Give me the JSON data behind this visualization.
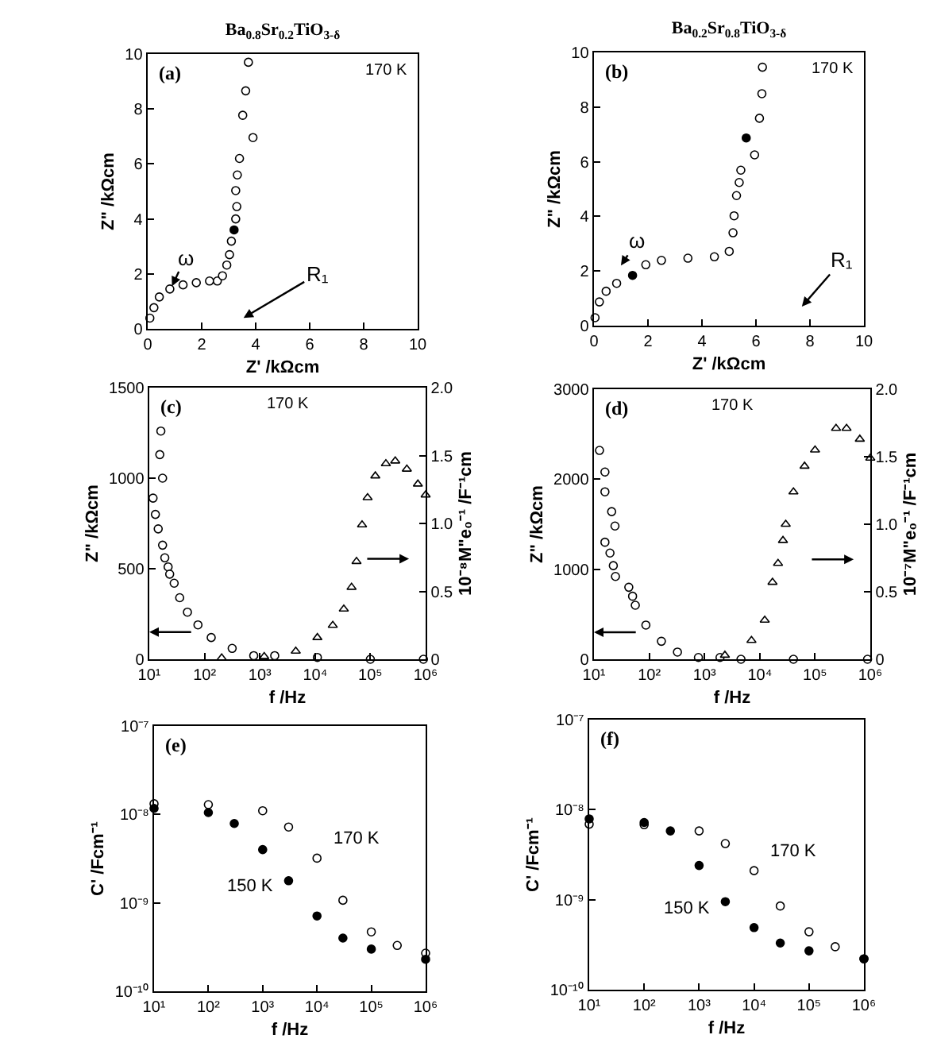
{
  "chart_data": [
    {
      "type": "scatter",
      "title": "Ba$_{0.8}$Sr$_{0.2}$TiO$_{3-δ}$",
      "xlabel": "Z' /kΩcm",
      "ylabel": "Z\" /kΩcm",
      "xlim": [
        0,
        10
      ],
      "ylim": [
        0,
        10
      ],
      "xticks": [
        0,
        2,
        4,
        6,
        8,
        10
      ],
      "yticks": [
        0,
        2,
        4,
        6,
        8,
        10
      ],
      "marker": "circle",
      "series": [
        {
          "color": "#ffffff",
          "x": [
            0.08,
            0.23,
            0.43,
            0.82,
            1.31,
            1.8,
            2.29,
            2.58,
            2.77,
            2.93,
            3.03,
            3.1,
            3.26,
            3.3,
            3.26,
            3.32,
            3.4,
            3.9,
            3.52,
            3.63,
            3.73
          ],
          "values": [
            0.39,
            0.77,
            1.16,
            1.45,
            1.6,
            1.68,
            1.74,
            1.74,
            1.93,
            2.32,
            2.7,
            3.19,
            4.0,
            4.45,
            5.03,
            5.6,
            6.2,
            6.96,
            7.77,
            8.66,
            9.7
          ]
        },
        {
          "color": "#000000",
          "x": [
            3.2
          ],
          "values": [
            3.6
          ]
        }
      ],
      "annotations": [
        "(a)",
        "170 K",
        "ω",
        "R₁"
      ]
    },
    {
      "type": "scatter",
      "title": "Ba$_{0.2}$Sr$_{0.8}$TiO$_{3-δ}$",
      "xlabel": "Z' /kΩcm",
      "ylabel": "Z\" /kΩcm",
      "xlim": [
        0,
        10
      ],
      "ylim": [
        0,
        10
      ],
      "xticks": [
        0,
        2,
        4,
        6,
        8,
        10
      ],
      "yticks": [
        0,
        2,
        4,
        6,
        8,
        10
      ],
      "marker": "circle",
      "series": [
        {
          "color": "#ffffff",
          "x": [
            0.04,
            0.2,
            0.45,
            0.84,
            1.92,
            2.5,
            3.48,
            4.46,
            5.01,
            5.15,
            5.19,
            5.28,
            5.38,
            5.44,
            5.95,
            6.13,
            6.22,
            6.24
          ],
          "values": [
            0.29,
            0.87,
            1.26,
            1.55,
            2.23,
            2.39,
            2.47,
            2.52,
            2.72,
            3.4,
            4.02,
            4.76,
            5.24,
            5.69,
            6.25,
            7.59,
            8.49,
            9.46
          ]
        },
        {
          "color": "#000000",
          "x": [
            1.43,
            5.64
          ],
          "values": [
            1.84,
            6.87
          ]
        }
      ],
      "annotations": [
        "(b)",
        "170 K",
        "ω",
        "R₁"
      ]
    },
    {
      "type": "scatter",
      "xlabel": "f /Hz",
      "ylabel": "Z\" /kΩcm",
      "y2label": "10⁻⁸M\"e₀⁻¹ /F⁻¹cm",
      "log": "x",
      "xlim": [
        10,
        1000000
      ],
      "ylim": [
        0,
        1500
      ],
      "y2lim": [
        0,
        2.0
      ],
      "xticks": [
        {
          "value": 10,
          "label": "10¹"
        },
        {
          "value": 100,
          "label": "10²"
        },
        {
          "value": 1000,
          "label": "10³"
        },
        {
          "value": 10000,
          "label": "10⁴"
        },
        {
          "value": 100000,
          "label": "10⁵"
        },
        {
          "value": 1000000,
          "label": "10⁶"
        }
      ],
      "yticks": [
        0,
        500,
        1000,
        1500
      ],
      "y2ticks": [
        0,
        {
          "value": 0.5,
          "label": "0.5"
        },
        {
          "value": 1,
          "label": "1.0"
        },
        {
          "value": 1.5,
          "label": "1.5"
        },
        {
          "value": 2,
          "label": "2.0"
        }
      ],
      "series": [
        {
          "color": "#ffffff",
          "marker": "circle",
          "x": [
            16.2,
            15.5,
            17.4,
            11.7,
            12.9,
            14.5,
            17.4,
            19.1,
            21.9,
            23.4,
            28.2,
            35.5,
            49,
            76,
            132,
            316,
            776,
            1860,
            11000,
            100000,
            912000
          ],
          "values": [
            1260,
            1130,
            1000,
            890,
            800,
            720,
            630,
            560,
            510,
            470,
            420,
            340,
            260,
            190,
            120,
            60,
            20,
            20,
            10,
            0,
            0
          ]
        },
        {
          "color": "#ffffff",
          "marker": "triangle",
          "axis": "y2",
          "x": [
            204,
            1200,
            4470,
            11000,
            20900,
            33100,
            45700,
            56200,
            70800,
            89100,
            123000,
            191000,
            282000,
            457000,
            724000,
            1000000
          ],
          "values": [
            0.01,
            0.02,
            0.06,
            0.16,
            0.25,
            0.37,
            0.53,
            0.72,
            0.99,
            1.19,
            1.35,
            1.44,
            1.46,
            1.4,
            1.29,
            1.21
          ]
        }
      ],
      "annotations": [
        "(c)",
        "170 K"
      ]
    },
    {
      "type": "scatter",
      "xlabel": "f /Hz",
      "ylabel": "Z\" /kΩcm",
      "y2label": "10⁻⁷M\"e₀⁻¹ /F⁻¹cm",
      "log": "x",
      "xlim": [
        10,
        1000000
      ],
      "ylim": [
        0,
        3000
      ],
      "y2lim": [
        0,
        2.0
      ],
      "xticks": [
        {
          "value": 10,
          "label": "10¹"
        },
        {
          "value": 100,
          "label": "10²"
        },
        {
          "value": 1000,
          "label": "10³"
        },
        {
          "value": 10000,
          "label": "10⁴"
        },
        {
          "value": 100000,
          "label": "10⁵"
        },
        {
          "value": 1000000,
          "label": "10⁶"
        }
      ],
      "yticks": [
        0,
        1000,
        2000,
        3000
      ],
      "y2ticks": [
        0,
        {
          "value": 0.5,
          "label": "0.5"
        },
        {
          "value": 1,
          "label": "1.0"
        },
        {
          "value": 1.5,
          "label": "1.5"
        },
        {
          "value": 2,
          "label": "2.0"
        }
      ],
      "series": [
        {
          "color": "#ffffff",
          "marker": "circle",
          "x": [
            12.6,
            15.8,
            15.8,
            20.9,
            24,
            15.8,
            19.5,
            22.4,
            24.5,
            42.7,
            50,
            56,
            87,
            166,
            324,
            776,
            1910,
            4570,
            40700,
            891000
          ],
          "values": [
            2320,
            2080,
            1860,
            1640,
            1480,
            1300,
            1180,
            1040,
            920,
            800,
            700,
            600,
            380,
            200,
            80,
            20,
            20,
            0,
            0,
            0
          ]
        },
        {
          "color": "#ffffff",
          "marker": "triangle",
          "axis": "y2",
          "x": [
            2340,
            7080,
            12300,
            17000,
            21400,
            26300,
            29500,
            40700,
            64600,
            100000,
            240000,
            372000,
            646000,
            1000000
          ],
          "values": [
            0.03,
            0.14,
            0.29,
            0.57,
            0.71,
            0.88,
            1.0,
            1.24,
            1.43,
            1.55,
            1.71,
            1.71,
            1.63,
            1.49
          ]
        }
      ],
      "annotations": [
        "(d)",
        "170 K"
      ]
    },
    {
      "type": "scatter",
      "xlabel": "f /Hz",
      "ylabel": "C' /Fcm⁻¹",
      "log": "xy",
      "xlim": [
        10,
        1000000
      ],
      "ylim": [
        1e-10,
        1e-07
      ],
      "marker": "circle",
      "xticks": [
        {
          "value": 10,
          "label": "10¹"
        },
        {
          "value": 100,
          "label": "10²"
        },
        {
          "value": 1000,
          "label": "10³"
        },
        {
          "value": 10000,
          "label": "10⁴"
        },
        {
          "value": 100000,
          "label": "10⁵"
        },
        {
          "value": 1000000,
          "label": "10⁶"
        }
      ],
      "yticks": [
        {
          "value": 1e-10,
          "label": "10⁻¹⁰"
        },
        {
          "value": 1e-09,
          "label": "10⁻⁹"
        },
        {
          "value": 1e-08,
          "label": "10⁻⁸"
        },
        {
          "value": 1e-07,
          "label": "10⁻⁷"
        }
      ],
      "series": [
        {
          "name": "170 K",
          "color": "#ffffff",
          "x": [
            10,
            100,
            1000,
            3000,
            10000,
            30000,
            100000,
            300000,
            1000000
          ],
          "values": [
            1.32e-08,
            1.29e-08,
            1.1e-08,
            7.2e-09,
            3.2e-09,
            1.07e-09,
            4.7e-10,
            3.3e-10,
            2.7e-10
          ]
        },
        {
          "name": "150 K",
          "color": "#000000",
          "x": [
            10,
            100,
            300,
            1000,
            3000,
            10000,
            30000,
            100000,
            1000000
          ],
          "values": [
            1.17e-08,
            1.05e-08,
            7.9e-09,
            4e-09,
            1.78e-09,
            7.1e-10,
            4e-10,
            3e-10,
            2.3e-10
          ]
        }
      ],
      "annotations": [
        "(e)"
      ]
    },
    {
      "type": "scatter",
      "xlabel": "f /Hz",
      "ylabel": "C' /Fcm⁻¹",
      "log": "xy",
      "xlim": [
        10,
        1000000
      ],
      "ylim": [
        1e-10,
        1e-07
      ],
      "marker": "circle",
      "xticks": [
        {
          "value": 10,
          "label": "10¹"
        },
        {
          "value": 100,
          "label": "10²"
        },
        {
          "value": 1000,
          "label": "10³"
        },
        {
          "value": 10000,
          "label": "10⁴"
        },
        {
          "value": 100000,
          "label": "10⁵"
        },
        {
          "value": 1000000,
          "label": "10⁶"
        }
      ],
      "yticks": [
        {
          "value": 1e-10,
          "label": "10⁻¹⁰"
        },
        {
          "value": 1e-09,
          "label": "10⁻⁹"
        },
        {
          "value": 1e-08,
          "label": "10⁻⁸"
        },
        {
          "value": 1e-07,
          "label": "10⁻⁷"
        }
      ],
      "series": [
        {
          "name": "170 K",
          "color": "#ffffff",
          "x": [
            10,
            100,
            1000,
            3000,
            10000,
            30000,
            100000,
            300000,
            1000000
          ],
          "values": [
            6.9e-09,
            6.8e-09,
            5.8e-09,
            4.2e-09,
            2.1e-09,
            8.5e-10,
            4.4e-10,
            3e-10,
            2.2e-10
          ]
        },
        {
          "name": "150 K",
          "color": "#000000",
          "x": [
            10,
            100,
            300,
            1000,
            3000,
            10000,
            30000,
            100000,
            1000000
          ],
          "values": [
            7.9e-09,
            7.2e-09,
            5.8e-09,
            2.4e-09,
            9.5e-10,
            4.9e-10,
            3.3e-10,
            2.7e-10,
            2.2e-10
          ]
        }
      ],
      "annotations": [
        "(f)"
      ]
    }
  ]
}
